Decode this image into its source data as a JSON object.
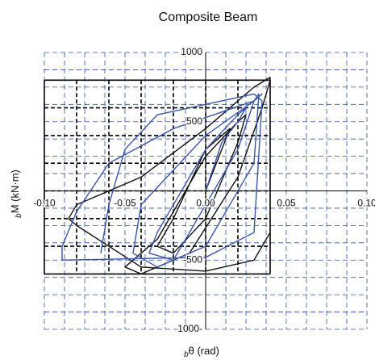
{
  "chart_data": {
    "type": "line",
    "title": "Composite Beam",
    "xlabel_sub": "b",
    "xlabel": "θ (rad)",
    "ylabel_sub": "b",
    "ylabel": "M (kN·m)",
    "xlim": [
      -0.1,
      0.1
    ],
    "ylim": [
      -1000,
      1000
    ],
    "xticks": [
      {
        "value": -0.1,
        "label": "-0.10"
      },
      -0.05,
      {
        "value": 0,
        "label": "0.00"
      },
      0.05,
      {
        "value": 0.1,
        "label": "0.10"
      }
    ],
    "yticks": [
      1000,
      500,
      -500,
      {
        "value": -1000,
        "label": "1000-"
      }
    ],
    "grid": true,
    "grid_color": "#3050a0",
    "minor_xstep": 0.0125,
    "minor_ystep": 125,
    "frame_xticks": [
      -0.1,
      -0.08,
      -0.06,
      -0.04,
      -0.02,
      0,
      0.02,
      0.04
    ],
    "frame_yticks": [
      -600,
      -400,
      -200,
      0,
      200,
      400,
      600,
      800
    ],
    "series": [
      {
        "name": "black",
        "color": "#111111",
        "x": [
          0,
          0.01,
          0.015,
          0.0,
          -0.02,
          -0.03,
          -0.02,
          0.0,
          0.02,
          0.025,
          0.02,
          0.0,
          -0.03,
          -0.05,
          -0.04,
          -0.01,
          0.02,
          0.035,
          0.04,
          0.04,
          0.03,
          0.0,
          -0.04,
          -0.08,
          -0.085,
          -0.08,
          -0.04,
          0.0,
          0.03,
          0.04
        ],
        "values": [
          0,
          300,
          450,
          300,
          -200,
          -400,
          -450,
          -200,
          350,
          550,
          500,
          250,
          -350,
          -550,
          -600,
          -450,
          100,
          600,
          800,
          820,
          750,
          450,
          100,
          -100,
          -200,
          -250,
          -550,
          -580,
          -500,
          -300
        ]
      },
      {
        "name": "blue",
        "color": "#3a55a8",
        "x": [
          0,
          0.01,
          0.02,
          0.025,
          0.02,
          0.0,
          -0.03,
          -0.035,
          -0.02,
          0.02,
          0.03,
          0.035,
          0.03,
          0.0,
          -0.04,
          -0.045,
          -0.03,
          0.0,
          0.03,
          0.033,
          0.03,
          -0.02,
          -0.06,
          -0.08,
          -0.089,
          -0.089,
          0.0,
          0.03,
          0.035,
          0.03,
          -0.03,
          -0.05,
          -0.06,
          -0.065
        ],
        "values": [
          0,
          350,
          500,
          600,
          550,
          300,
          -300,
          -450,
          -500,
          300,
          650,
          700,
          650,
          400,
          -100,
          -450,
          -550,
          -400,
          200,
          700,
          650,
          450,
          200,
          -150,
          -400,
          -500,
          -480,
          -300,
          650,
          700,
          550,
          300,
          -100,
          -450
        ]
      }
    ]
  }
}
